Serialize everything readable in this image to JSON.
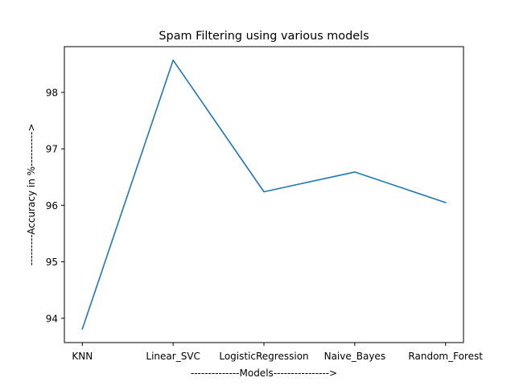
{
  "chart_data": {
    "type": "line",
    "title": "Spam Filtering using various models",
    "xlabel": "--------------Models---------------->",
    "ylabel": "---------Accuracy in %---------->",
    "categories": [
      "KNN",
      "Linear_SVC",
      "LogisticRegression",
      "Naive_Bayes",
      "Random_Forest"
    ],
    "series": [
      {
        "values": [
          93.81,
          98.57,
          96.24,
          96.59,
          96.05
        ],
        "color": "#1f77b4"
      }
    ],
    "yticks": [
      94,
      95,
      96,
      97,
      98
    ],
    "ylim": [
      93.57,
      98.81
    ],
    "grid": false,
    "legend": "none"
  }
}
